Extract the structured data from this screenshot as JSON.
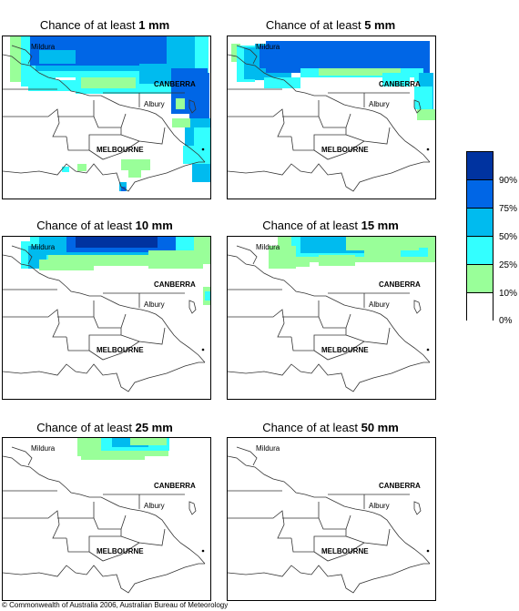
{
  "panels": [
    {
      "title_prefix": "Chance of at least ",
      "threshold": "1 mm"
    },
    {
      "title_prefix": "Chance of at least ",
      "threshold": "5 mm"
    },
    {
      "title_prefix": "Chance of at least ",
      "threshold": "10 mm"
    },
    {
      "title_prefix": "Chance of at least ",
      "threshold": "15 mm"
    },
    {
      "title_prefix": "Chance of at least ",
      "threshold": "25 mm"
    },
    {
      "title_prefix": "Chance of at least ",
      "threshold": "50 mm"
    }
  ],
  "places": {
    "mildura": "Mildura",
    "canberra": "CANBERRA",
    "albury": "Albury",
    "melbourne": "MELBOURNE"
  },
  "legend": {
    "labels": [
      "90%",
      "75%",
      "50%",
      "25%",
      "10%",
      "0%"
    ],
    "colors": [
      "#0033a0",
      "#0066e6",
      "#00bbef",
      "#33ffff",
      "#99ff99",
      "#ffffff"
    ]
  },
  "copyright": "© Commonwealth of Australia 2006, Australian Bureau of Meteorology"
}
